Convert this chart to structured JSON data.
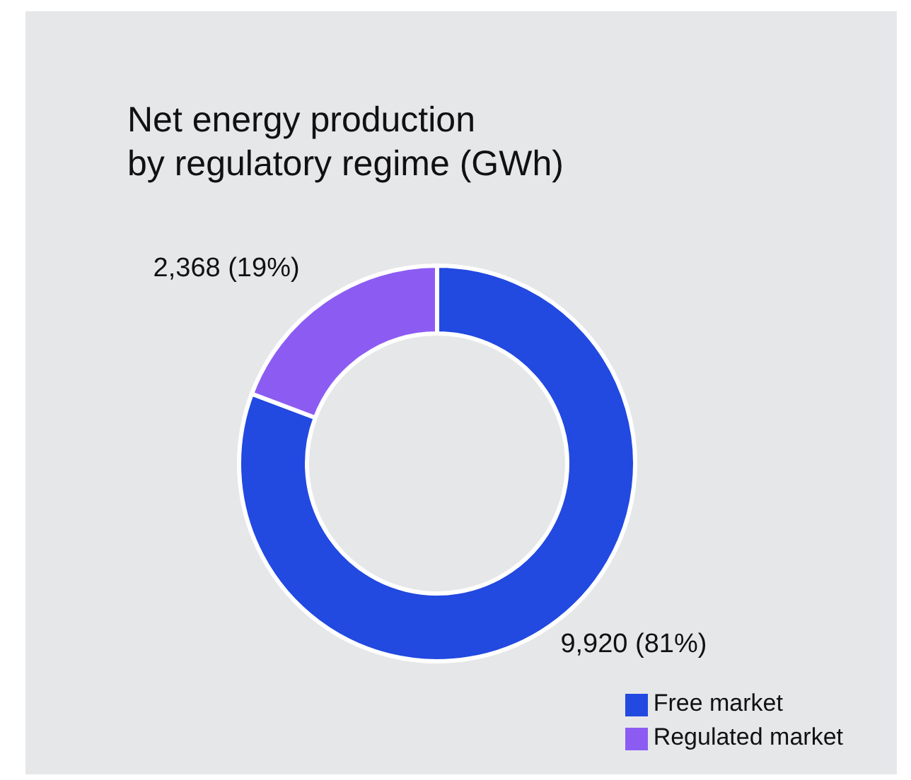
{
  "chart_data": {
    "type": "donut",
    "title": "Net energy production\nby regulatory regime (GWh)",
    "categories": [
      "Free market",
      "Regulated market"
    ],
    "values": [
      9920,
      2368
    ],
    "colors": [
      "#2249e0",
      "#8c5cf2"
    ],
    "value_labels": [
      "9,920 (81%)",
      "2,368 (19%)"
    ],
    "legend": "bottom right"
  }
}
